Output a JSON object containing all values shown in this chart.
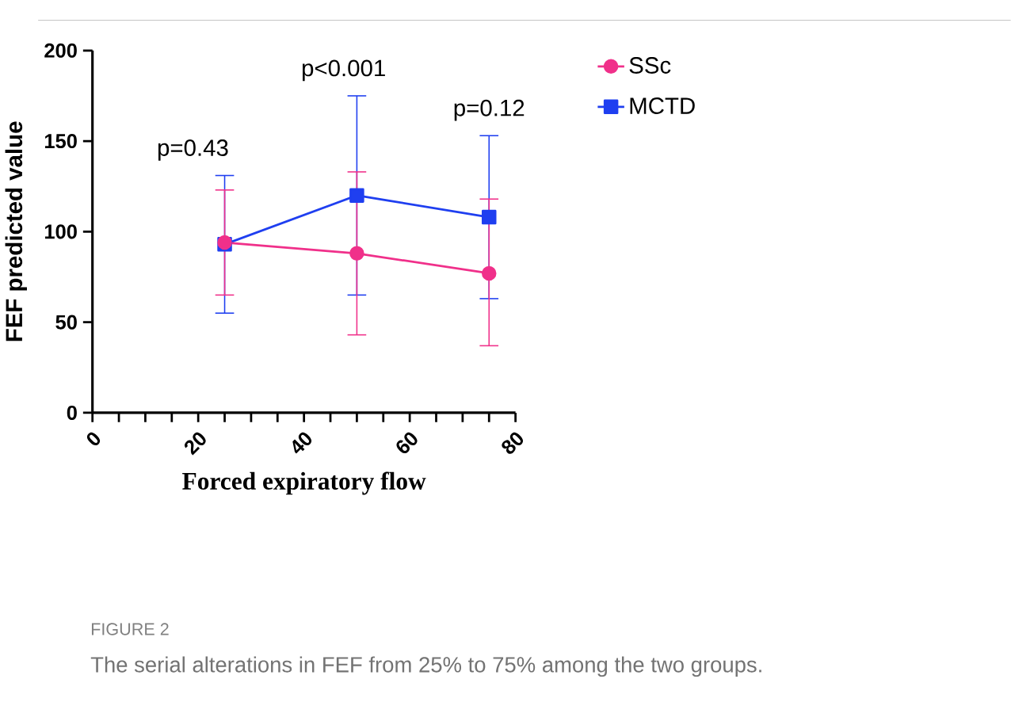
{
  "chart_data": {
    "type": "line",
    "xlabel": "Forced expiratory flow",
    "ylabel": "FEF predicted value",
    "x": [
      25,
      50,
      75
    ],
    "series": [
      {
        "name": "SSc",
        "color": "#f0308a",
        "marker": "circle",
        "values": [
          94,
          88,
          77
        ],
        "errors": [
          [
            65,
            123
          ],
          [
            43,
            133
          ],
          [
            37,
            118
          ]
        ]
      },
      {
        "name": "MCTD",
        "color": "#1f3ff0",
        "marker": "square",
        "values": [
          93,
          120,
          108
        ],
        "errors": [
          [
            55,
            131
          ],
          [
            65,
            175
          ],
          [
            63,
            153
          ]
        ]
      }
    ],
    "xlim": [
      0,
      80
    ],
    "ylim": [
      0,
      200
    ],
    "xticks": [
      0,
      {
        "value": 5,
        "label": null
      },
      {
        "value": 10,
        "label": null
      },
      {
        "value": 15,
        "label": null
      },
      20,
      {
        "value": 25,
        "label": null
      },
      {
        "value": 30,
        "label": null
      },
      {
        "value": 35,
        "label": null
      },
      40,
      {
        "value": 45,
        "label": null
      },
      {
        "value": 50,
        "label": null
      },
      {
        "value": 55,
        "label": null
      },
      60,
      {
        "value": 65,
        "label": null
      },
      {
        "value": 70,
        "label": null
      },
      {
        "value": 75,
        "label": null
      },
      80
    ],
    "yticks": [
      0,
      50,
      100,
      150,
      200
    ],
    "legend": "top right",
    "grid": false,
    "line_style": "solid",
    "annotations": [
      "p=0.43",
      "p<0.001",
      "p=0.12",
      "FIGURE 2",
      "The serial alterations in FEF from 25% to 75% among the two groups."
    ]
  }
}
